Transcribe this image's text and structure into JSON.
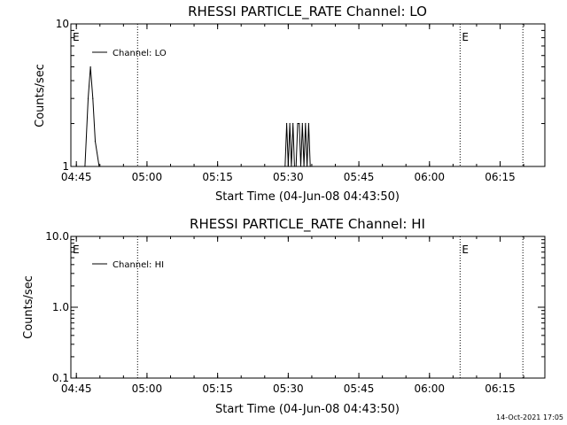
{
  "chart_data": [
    {
      "type": "line",
      "title": "RHESSI PARTICLE_RATE Channel: LO",
      "xlabel": "Start Time (04-Jun-08 04:43:50)",
      "ylabel": "Counts/sec",
      "y_scale": "log",
      "ylim": [
        1,
        10
      ],
      "xlim": [
        "04:43:50",
        "06:24:30"
      ],
      "x_ticks": [
        "04:45",
        "05:00",
        "05:15",
        "05:30",
        "05:45",
        "06:00",
        "06:15"
      ],
      "y_ticks": [
        "1",
        "10"
      ],
      "grid": false,
      "legend_position": "top-left",
      "series": [
        {
          "name": "Channel: LO",
          "x": [
            "04:46:50",
            "04:47:30",
            "04:48:00",
            "04:48:30",
            "04:49:00",
            "04:49:50",
            "05:29:20",
            "05:29:40",
            "05:30:00",
            "05:30:20",
            "05:30:40",
            "05:31:00",
            "05:31:20",
            "05:31:40",
            "05:32:00",
            "05:32:20",
            "05:32:40",
            "05:33:00",
            "05:33:20",
            "05:33:40",
            "05:34:00",
            "05:34:20",
            "05:34:40"
          ],
          "values": [
            1,
            3,
            5,
            3,
            1.5,
            1,
            1,
            2,
            1,
            2,
            1,
            2,
            1,
            1,
            2,
            2,
            1,
            2,
            1,
            2,
            1,
            2,
            1
          ]
        }
      ],
      "markers": [
        {
          "label": "E",
          "time": "04:43:50"
        },
        {
          "label": "E",
          "time": "06:06:30"
        }
      ],
      "dotted_lines": [
        "04:58:00",
        "06:06:30",
        "06:19:50"
      ]
    },
    {
      "type": "line",
      "title": "RHESSI PARTICLE_RATE Channel: HI",
      "xlabel": "Start Time (04-Jun-08 04:43:50)",
      "ylabel": "Counts/sec",
      "y_scale": "log",
      "ylim": [
        0.1,
        10
      ],
      "xlim": [
        "04:43:50",
        "06:24:30"
      ],
      "x_ticks": [
        "04:45",
        "05:00",
        "05:15",
        "05:30",
        "05:45",
        "06:00",
        "06:15"
      ],
      "y_ticks": [
        "0.1",
        "1.0",
        "10.0"
      ],
      "grid": false,
      "legend_position": "top-left",
      "series": [
        {
          "name": "Channel: HI",
          "x": [],
          "values": []
        }
      ],
      "markers": [
        {
          "label": "E",
          "time": "04:43:50"
        },
        {
          "label": "E",
          "time": "06:06:30"
        }
      ],
      "dotted_lines": [
        "04:58:00",
        "06:06:30",
        "06:19:50"
      ]
    }
  ],
  "footer": {
    "timestamp": "14-Oct-2021 17:05"
  }
}
